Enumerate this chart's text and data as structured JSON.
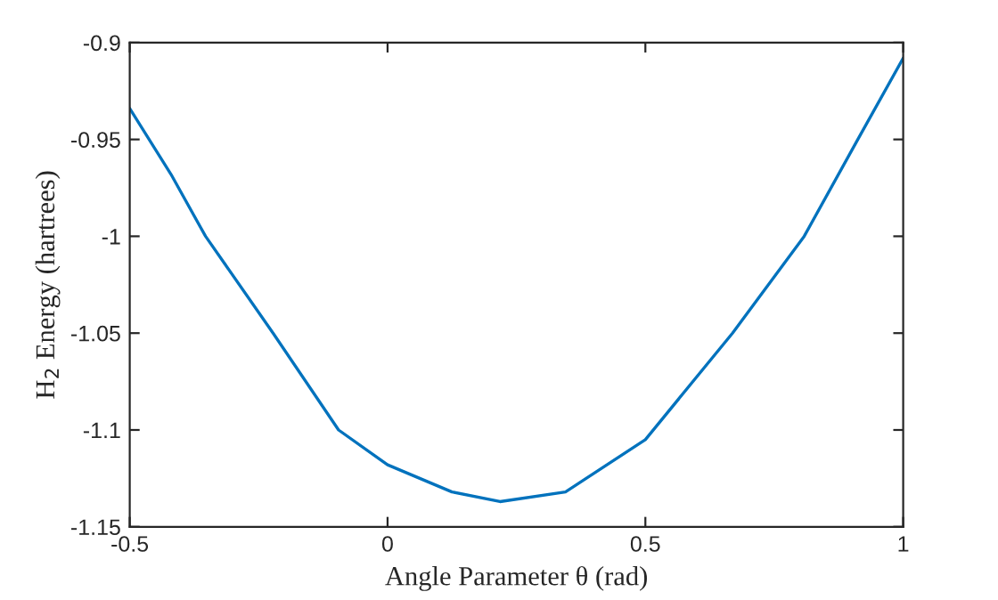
{
  "chart_data": {
    "type": "line",
    "xlabel": "Angle Parameter θ (rad)",
    "ylabel": "H$_{2}$ Energy (hartrees)",
    "x": [
      -0.5,
      -0.42,
      -0.353,
      -0.222,
      -0.095,
      0,
      0.125,
      0.218,
      0.345,
      0.5,
      0.669,
      0.808,
      0.912,
      1.0
    ],
    "series": [
      {
        "color": "#0072bd",
        "values": [
          -0.934,
          -0.968,
          -1.0,
          -1.05,
          -1.1,
          -1.118,
          -1.132,
          -1.137,
          -1.132,
          -1.105,
          -1.05,
          -1.0,
          -0.95,
          -0.908
        ]
      }
    ],
    "xlim": [
      -0.5,
      1
    ],
    "xticks": [
      -0.5,
      0,
      0.5,
      1
    ],
    "ylim": [
      -1.15,
      -0.9
    ],
    "yticks": [
      -1.15,
      -1.1,
      -1.05,
      -1,
      -0.95,
      -0.9
    ],
    "grid": false,
    "legend": false,
    "marker": "none",
    "line_style": "solid"
  }
}
